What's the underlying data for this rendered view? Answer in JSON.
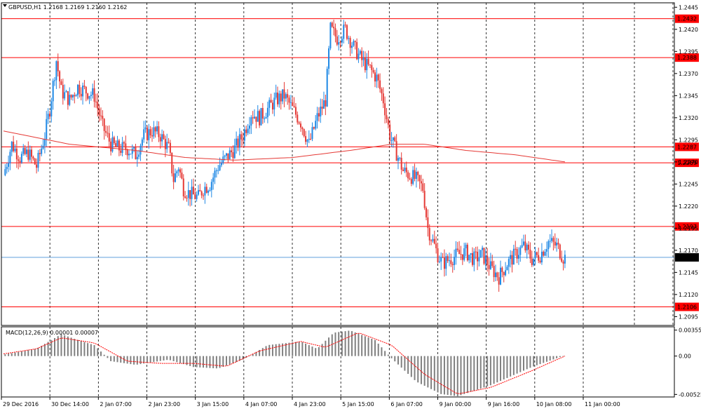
{
  "symbol_header": "GBPUSD,H1  1.2168 1.2169 1.2160 1.2162",
  "indicator_header": "MACD(12,26,9) 0.00001 0.00007",
  "colors": {
    "up": "#1e88e5",
    "down": "#e53935",
    "level": "#ff0000",
    "current": "#4a90d9",
    "signal": "#ff0000",
    "hist": "#808080",
    "ma": "#e53935"
  },
  "chart_data": [
    {
      "type": "candlestick",
      "title": "GBPUSD,H1",
      "ohlc_last": {
        "open": 1.2168,
        "high": 1.2169,
        "low": 1.216,
        "close": 1.2162
      },
      "ylim": [
        1.2085,
        1.245
      ],
      "y_ticks": [
        "1.2445",
        "1.2420",
        "1.2395",
        "1.2370",
        "1.2345",
        "1.2320",
        "1.2295",
        "1.2270",
        "1.2245",
        "1.2220",
        "1.2195",
        "1.2170",
        "1.2145",
        "1.2120",
        "1.2095"
      ],
      "x_ticks": [
        "29 Dec 2016",
        "30 Dec 14:00",
        "2 Jan 07:00",
        "2 Jan 23:00",
        "3 Jan 15:00",
        "4 Jan 07:00",
        "4 Jan 23:00",
        "5 Jan 15:00",
        "6 Jan 07:00",
        "9 Jan 00:00",
        "9 Jan 16:00",
        "10 Jan 08:00",
        "11 Jan 00:00"
      ],
      "horizontal_levels": [
        "1.2432",
        "1.2388",
        "1.2287",
        "1.2269",
        "1.2197",
        "1.2106"
      ],
      "current_price": "1.2162",
      "close_path": [
        [
          0,
          1.2255
        ],
        [
          5,
          1.229
        ],
        [
          10,
          1.2275
        ],
        [
          15,
          1.228
        ],
        [
          20,
          1.2265
        ],
        [
          25,
          1.23
        ],
        [
          28,
          1.233
        ],
        [
          32,
          1.2385
        ],
        [
          35,
          1.235
        ],
        [
          40,
          1.234
        ],
        [
          45,
          1.2355
        ],
        [
          50,
          1.235
        ],
        [
          55,
          1.2345
        ],
        [
          60,
          1.231
        ],
        [
          65,
          1.229
        ],
        [
          70,
          1.2285
        ],
        [
          75,
          1.2285
        ],
        [
          80,
          1.2278
        ],
        [
          85,
          1.23
        ],
        [
          90,
          1.2305
        ],
        [
          95,
          1.23
        ],
        [
          100,
          1.2285
        ],
        [
          103,
          1.225
        ],
        [
          106,
          1.2265
        ],
        [
          109,
          1.224
        ],
        [
          112,
          1.2235
        ],
        [
          115,
          1.2232
        ],
        [
          118,
          1.223
        ],
        [
          121,
          1.224
        ],
        [
          125,
          1.2245
        ],
        [
          130,
          1.2265
        ],
        [
          135,
          1.2275
        ],
        [
          140,
          1.2285
        ],
        [
          145,
          1.23
        ],
        [
          150,
          1.2325
        ],
        [
          155,
          1.232
        ],
        [
          160,
          1.233
        ],
        [
          165,
          1.234
        ],
        [
          170,
          1.2345
        ],
        [
          175,
          1.233
        ],
        [
          180,
          1.2315
        ],
        [
          185,
          1.229
        ],
        [
          190,
          1.232
        ],
        [
          195,
          1.234
        ],
        [
          198,
          1.242
        ],
        [
          202,
          1.241
        ],
        [
          207,
          1.242
        ],
        [
          212,
          1.24
        ],
        [
          217,
          1.2385
        ],
        [
          222,
          1.2375
        ],
        [
          226,
          1.2365
        ],
        [
          230,
          1.234
        ],
        [
          234,
          1.23
        ],
        [
          238,
          1.228
        ],
        [
          242,
          1.226
        ],
        [
          246,
          1.2255
        ],
        [
          250,
          1.225
        ],
        [
          254,
          1.224
        ],
        [
          257,
          1.2195
        ],
        [
          260,
          1.218
        ],
        [
          263,
          1.2165
        ],
        [
          266,
          1.2155
        ],
        [
          270,
          1.216
        ],
        [
          275,
          1.2165
        ],
        [
          280,
          1.2168
        ],
        [
          285,
          1.216
        ],
        [
          290,
          1.2165
        ],
        [
          295,
          1.215
        ],
        [
          300,
          1.214
        ],
        [
          305,
          1.2155
        ],
        [
          310,
          1.2165
        ],
        [
          315,
          1.2175
        ],
        [
          320,
          1.216
        ],
        [
          325,
          1.2165
        ],
        [
          330,
          1.218
        ],
        [
          335,
          1.2175
        ],
        [
          339,
          1.2162
        ]
      ],
      "moving_average": [
        [
          0,
          1.2305
        ],
        [
          40,
          1.229
        ],
        [
          80,
          1.2283
        ],
        [
          110,
          1.2275
        ],
        [
          140,
          1.2272
        ],
        [
          175,
          1.2275
        ],
        [
          210,
          1.2283
        ],
        [
          235,
          1.229
        ],
        [
          255,
          1.229
        ],
        [
          280,
          1.2283
        ],
        [
          310,
          1.2278
        ],
        [
          340,
          1.227
        ]
      ],
      "bar_count": 340
    },
    {
      "type": "bar",
      "title": "MACD(12,26,9)",
      "values_label": [
        "0.00001",
        "0.00007"
      ],
      "ylim": [
        -0.0056,
        0.004
      ],
      "y_ticks": [
        "0.00355",
        "0.00",
        "-0.00525"
      ],
      "histogram": [
        [
          0,
          0.0002
        ],
        [
          20,
          0.001
        ],
        [
          35,
          0.003
        ],
        [
          45,
          0.0022
        ],
        [
          55,
          0.0015
        ],
        [
          65,
          -0.0007
        ],
        [
          80,
          -0.0012
        ],
        [
          100,
          -0.0005
        ],
        [
          115,
          -0.0015
        ],
        [
          130,
          -0.0017
        ],
        [
          145,
          -0.0005
        ],
        [
          160,
          0.0015
        ],
        [
          180,
          0.002
        ],
        [
          190,
          0.001
        ],
        [
          200,
          0.0032
        ],
        [
          210,
          0.0035
        ],
        [
          225,
          0.0022
        ],
        [
          235,
          -0.0003
        ],
        [
          250,
          -0.0035
        ],
        [
          265,
          -0.0052
        ],
        [
          275,
          -0.0055
        ],
        [
          295,
          -0.004
        ],
        [
          320,
          -0.0015
        ],
        [
          340,
          0.0001
        ]
      ],
      "signal": [
        [
          0,
          0.0003
        ],
        [
          20,
          0.001
        ],
        [
          35,
          0.0025
        ],
        [
          55,
          0.0018
        ],
        [
          75,
          -0.0007
        ],
        [
          95,
          -0.001
        ],
        [
          115,
          -0.001
        ],
        [
          135,
          -0.0014
        ],
        [
          155,
          0.0007
        ],
        [
          180,
          0.002
        ],
        [
          195,
          0.0012
        ],
        [
          215,
          0.0032
        ],
        [
          235,
          0.0015
        ],
        [
          255,
          -0.0025
        ],
        [
          275,
          -0.0052
        ],
        [
          295,
          -0.0043
        ],
        [
          320,
          -0.002
        ],
        [
          340,
          0.0
        ]
      ]
    }
  ]
}
